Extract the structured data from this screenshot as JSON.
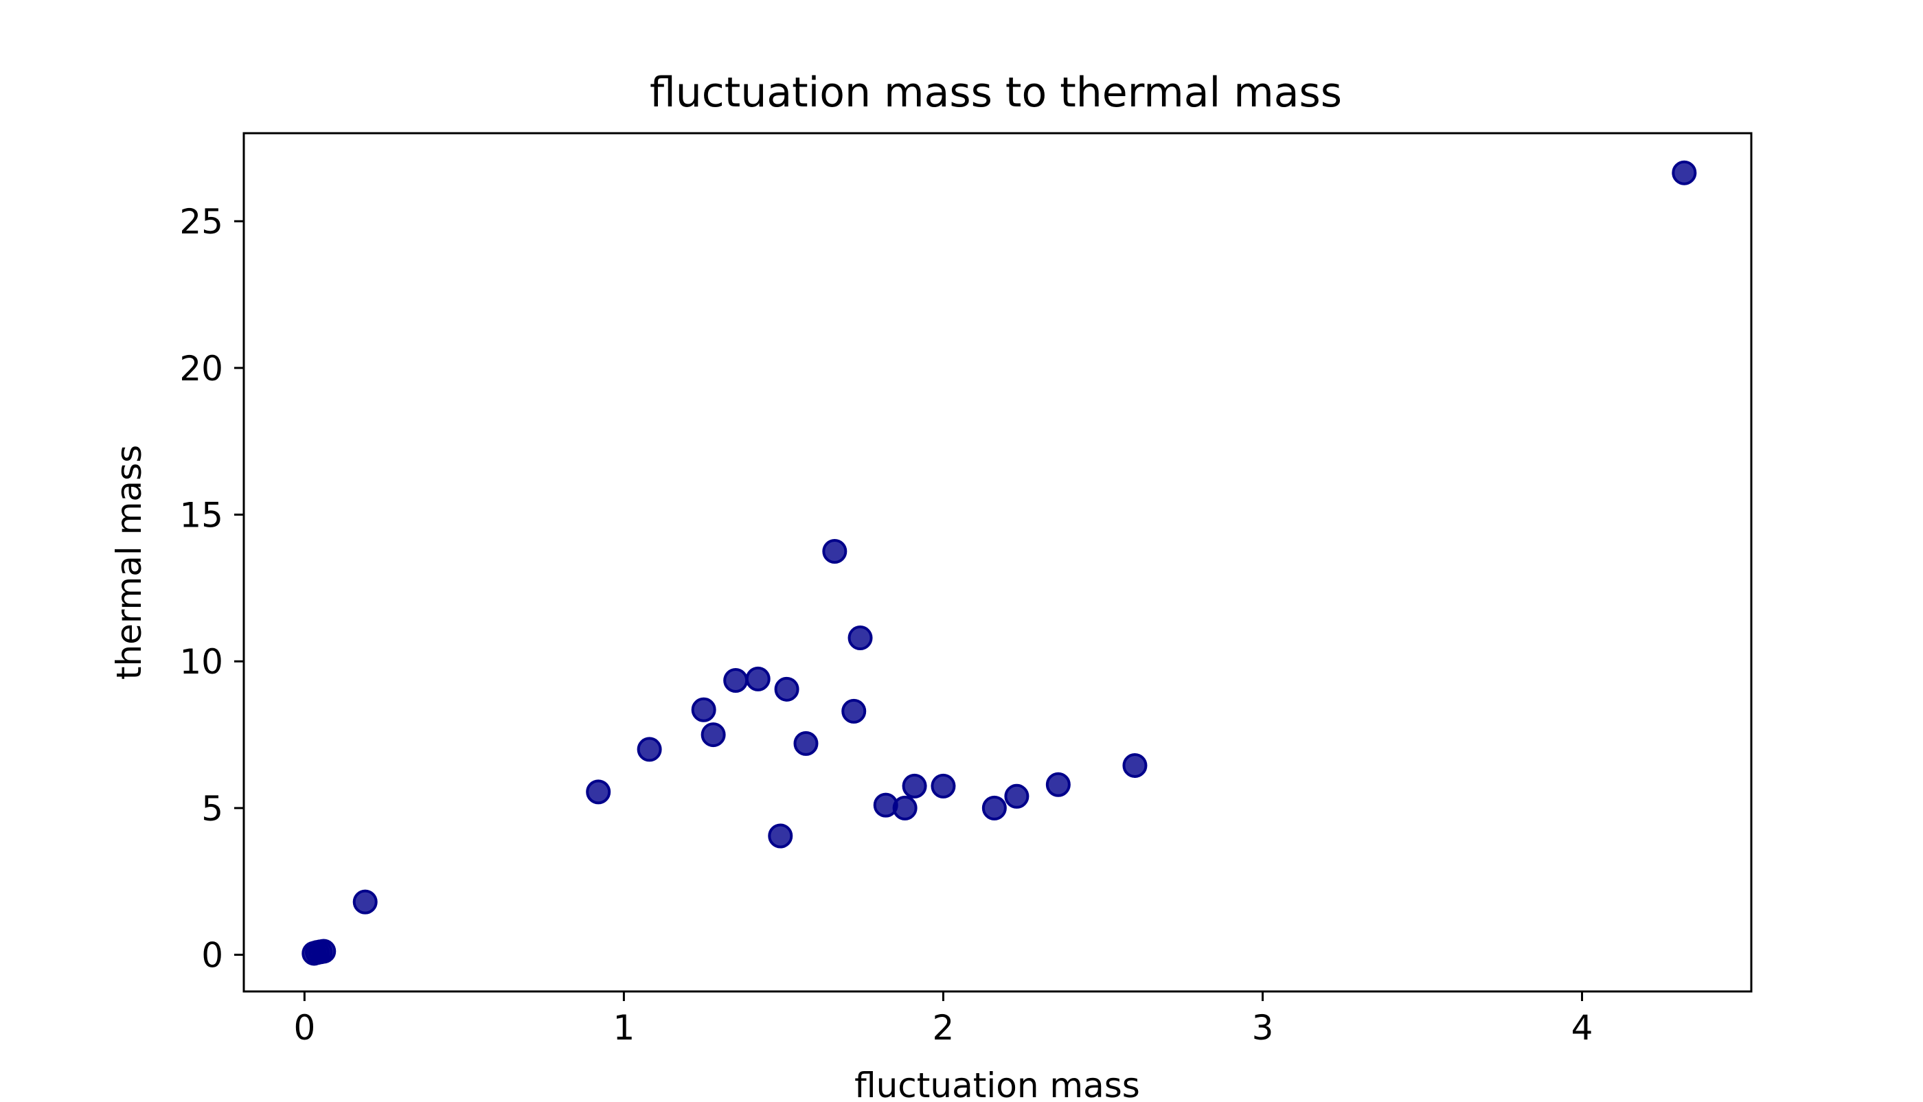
{
  "chart_data": {
    "type": "scatter",
    "title": "fluctuation mass to thermal mass",
    "xlabel": "fluctuation mass",
    "ylabel": "thermal mass",
    "xlim": [
      -0.19,
      4.53
    ],
    "ylim": [
      -1.25,
      28.0
    ],
    "x_ticks": [
      0,
      1,
      2,
      3,
      4
    ],
    "y_ticks": [
      0,
      5,
      10,
      15,
      20,
      25
    ],
    "x_tick_labels": [
      "0",
      "1",
      "2",
      "3",
      "4"
    ],
    "y_tick_labels": [
      "0",
      "5",
      "10",
      "15",
      "20",
      "25"
    ],
    "grid": false,
    "legend": false,
    "marker_color": "#00008b",
    "points": [
      {
        "x": 0.03,
        "y": 0.05
      },
      {
        "x": 0.04,
        "y": 0.08
      },
      {
        "x": 0.05,
        "y": 0.1
      },
      {
        "x": 0.06,
        "y": 0.12
      },
      {
        "x": 0.19,
        "y": 1.8
      },
      {
        "x": 0.92,
        "y": 5.55
      },
      {
        "x": 1.08,
        "y": 7.0
      },
      {
        "x": 1.25,
        "y": 8.35
      },
      {
        "x": 1.28,
        "y": 7.5
      },
      {
        "x": 1.35,
        "y": 9.35
      },
      {
        "x": 1.42,
        "y": 9.4
      },
      {
        "x": 1.49,
        "y": 4.05
      },
      {
        "x": 1.51,
        "y": 9.05
      },
      {
        "x": 1.57,
        "y": 7.2
      },
      {
        "x": 1.66,
        "y": 13.75
      },
      {
        "x": 1.72,
        "y": 8.3
      },
      {
        "x": 1.74,
        "y": 10.8
      },
      {
        "x": 1.82,
        "y": 5.1
      },
      {
        "x": 1.88,
        "y": 5.0
      },
      {
        "x": 1.91,
        "y": 5.75
      },
      {
        "x": 2.0,
        "y": 5.75
      },
      {
        "x": 2.16,
        "y": 5.0
      },
      {
        "x": 2.23,
        "y": 5.4
      },
      {
        "x": 2.36,
        "y": 5.8
      },
      {
        "x": 2.6,
        "y": 6.45
      },
      {
        "x": 4.32,
        "y": 26.65
      }
    ]
  }
}
